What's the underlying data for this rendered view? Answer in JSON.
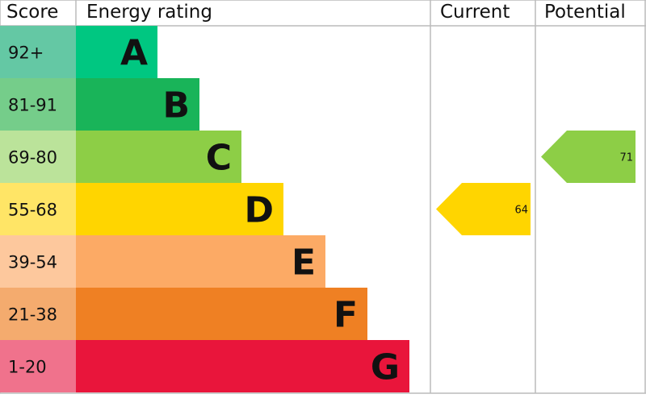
{
  "chart_data": {
    "type": "bar",
    "headers": {
      "score": "Score",
      "rating": "Energy rating",
      "current": "Current",
      "potential": "Potential"
    },
    "bands": [
      {
        "letter": "A",
        "range": "92+",
        "color": "#00c781",
        "score_color": "#64c8a4"
      },
      {
        "letter": "B",
        "range": "81-91",
        "color": "#19b459",
        "score_color": "#75cd8a"
      },
      {
        "letter": "C",
        "range": "69-80",
        "color": "#8dce46",
        "score_color": "#bbe39a"
      },
      {
        "letter": "D",
        "range": "55-68",
        "color": "#ffd500",
        "score_color": "#ffe566"
      },
      {
        "letter": "E",
        "range": "39-54",
        "color": "#fcaa65",
        "score_color": "#fdc89d"
      },
      {
        "letter": "F",
        "range": "21-38",
        "color": "#ef8023",
        "score_color": "#f4ab6e"
      },
      {
        "letter": "G",
        "range": "1-20",
        "color": "#e9153b",
        "score_color": "#f0728c"
      }
    ],
    "current": {
      "value": "64",
      "band": "D",
      "color": "#ffd500"
    },
    "potential": {
      "value": "71",
      "band": "C",
      "color": "#8dce46"
    }
  }
}
